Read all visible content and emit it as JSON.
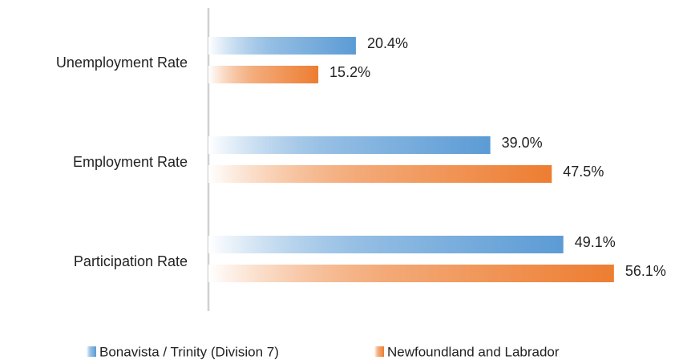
{
  "chart_data": {
    "type": "bar",
    "orientation": "horizontal",
    "categories": [
      "Unemployment Rate",
      "Employment Rate",
      "Participation Rate"
    ],
    "series": [
      {
        "name": "Bonavista / Trinity (Division 7)",
        "color": "#5b9bd5",
        "values": [
          20.4,
          39.0,
          49.1
        ],
        "value_labels": [
          "20.4%",
          "39.0%",
          "49.1%"
        ]
      },
      {
        "name": "Newfoundland and Labrador",
        "color": "#ed7d31",
        "values": [
          15.2,
          47.5,
          56.1
        ],
        "value_labels": [
          "15.2%",
          "47.5%",
          "56.1%"
        ]
      }
    ],
    "xlim": [
      0,
      60
    ],
    "legend": "bottom",
    "gradient": true
  }
}
